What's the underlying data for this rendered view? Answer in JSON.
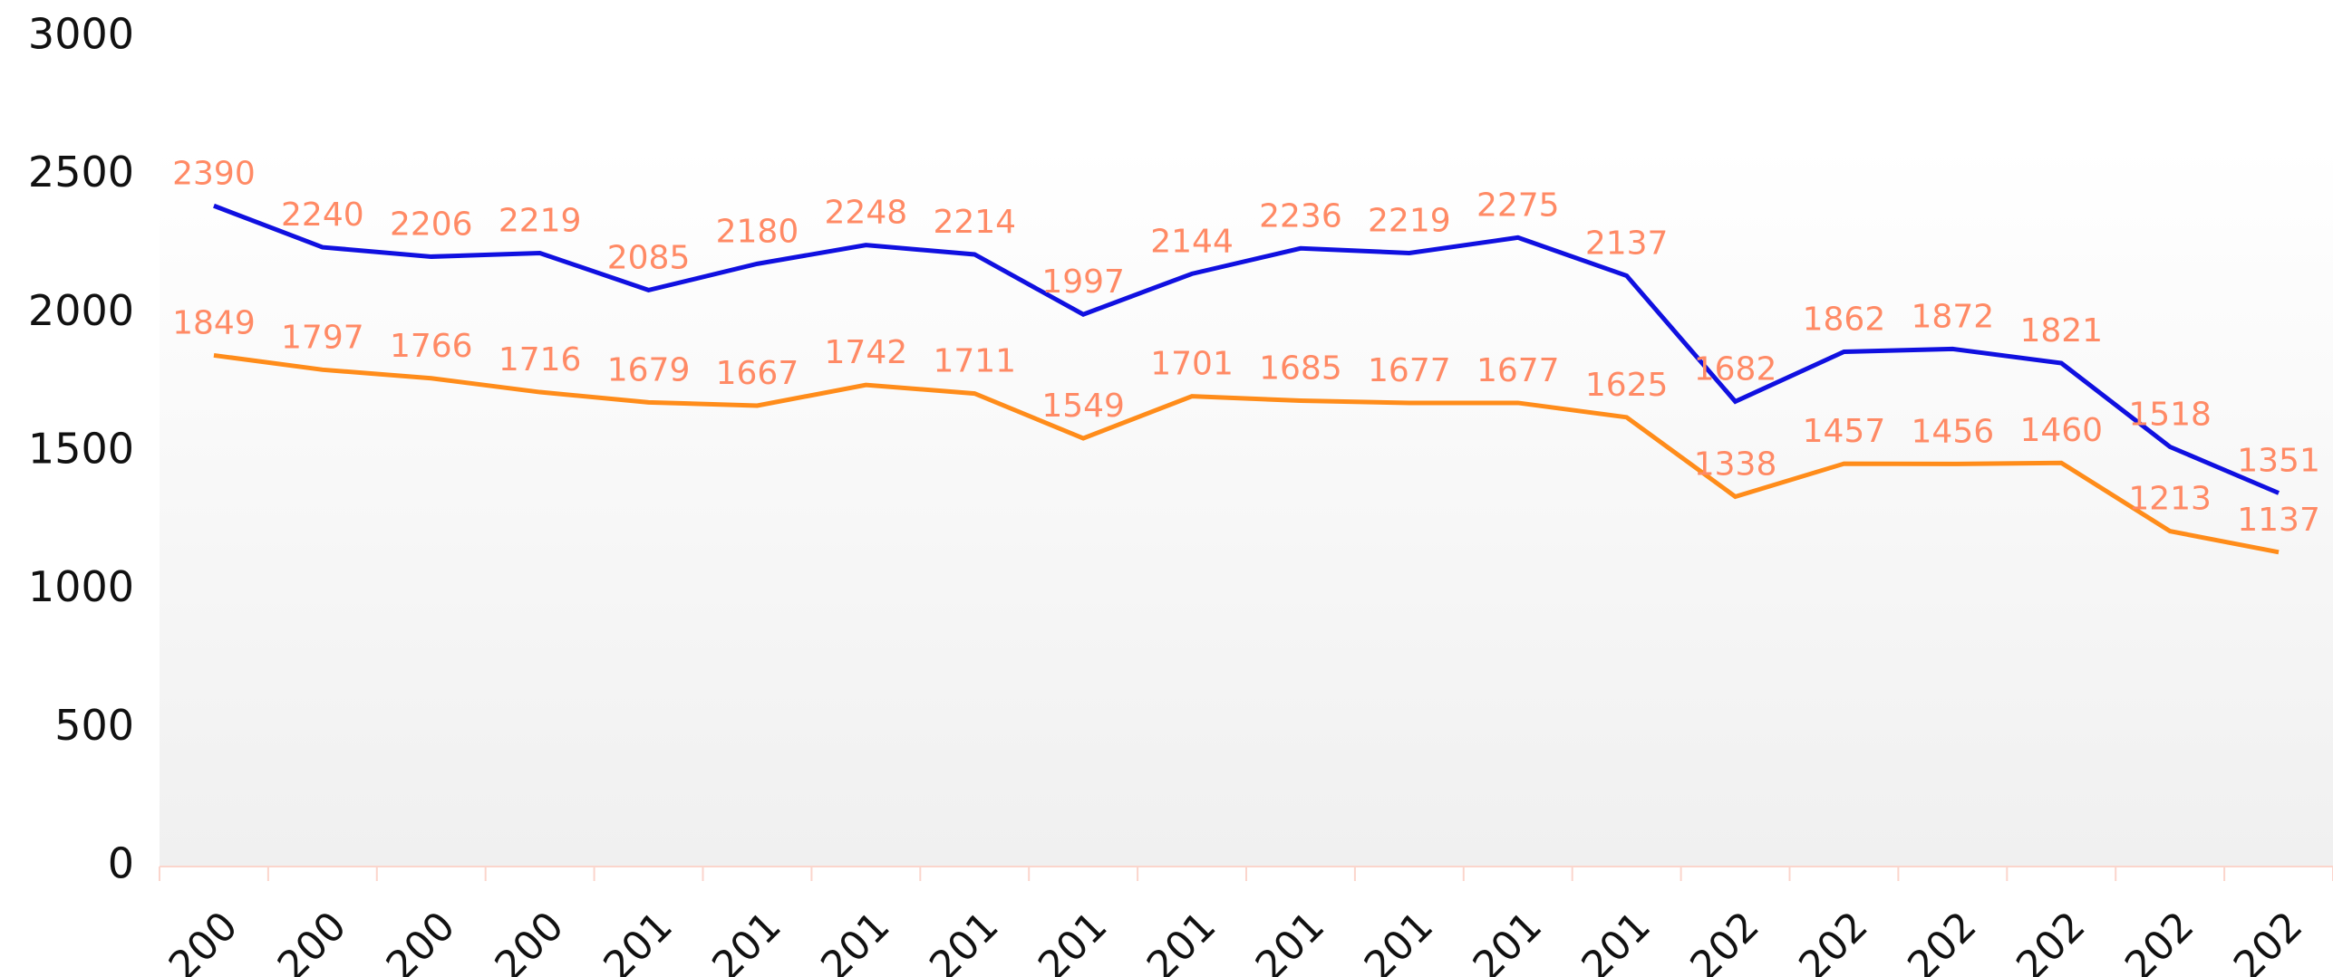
{
  "chart_data": {
    "type": "line",
    "categories": [
      "200",
      "200",
      "200",
      "200",
      "201",
      "201",
      "201",
      "201",
      "201",
      "201",
      "201",
      "201",
      "201",
      "201",
      "202",
      "202",
      "202",
      "202",
      "202",
      "202"
    ],
    "series": [
      {
        "color": "#1010e0",
        "values": [
          2390,
          2240,
          2206,
          2219,
          2085,
          2180,
          2248,
          2214,
          1997,
          2144,
          2236,
          2219,
          2275,
          2137,
          1682,
          1862,
          1872,
          1821,
          1518,
          1351
        ]
      },
      {
        "color": "#ff8c1a",
        "values": [
          1849,
          1797,
          1766,
          1716,
          1679,
          1667,
          1742,
          1711,
          1549,
          1701,
          1685,
          1677,
          1677,
          1625,
          1338,
          1457,
          1456,
          1460,
          1213,
          1137
        ]
      }
    ],
    "ylim": [
      0,
      3000
    ],
    "yticks": [
      0,
      500,
      1000,
      1500,
      2000,
      2500,
      3000
    ]
  }
}
